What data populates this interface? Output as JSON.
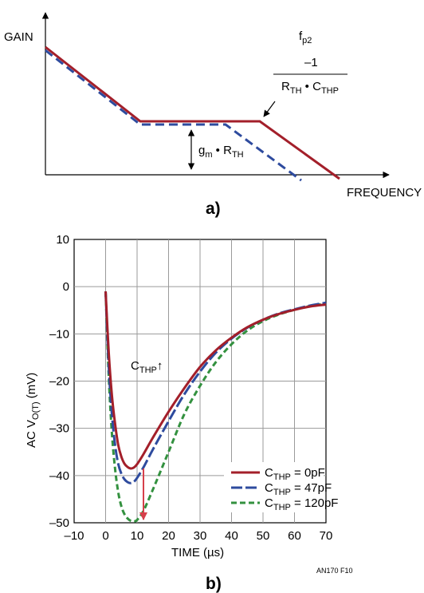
{
  "colors": {
    "red": "#a31f2a",
    "blue": "#2e4b9e",
    "green": "#33913f",
    "arrow_red": "#d6404b",
    "grid": "#9a9a9a"
  },
  "chart_data": [
    {
      "type": "line",
      "panel_label": "a)",
      "ylabel": "GAIN",
      "xlabel": "FREQUENCY",
      "axes": "no ticks, arrowheads on both axes",
      "series": [
        {
          "color": "red",
          "style": "solid",
          "shape": "slope down, flat plateau, slope down at higher frequency"
        },
        {
          "color": "blue",
          "style": "dashed",
          "shape": "slope down, flat plateau slightly lower, rolls off earlier"
        }
      ],
      "annotations": {
        "pole_label": "f",
        "pole_label_sub": "p2",
        "pole_numerator": "–1",
        "pole_den_r": "R",
        "pole_den_r_sub": "TH",
        "pole_den_dot": " • C",
        "pole_den_c_sub": "THP",
        "gain_text_g": "g",
        "gain_text_g_sub": "m",
        "gain_text_dot": " • R",
        "gain_text_r_sub": "TH"
      }
    },
    {
      "type": "line",
      "panel_label": "b)",
      "ylabel_main": "AC V",
      "ylabel_sub": "O(T)",
      "ylabel_unit": " (mV)",
      "xlabel": "TIME (µs)",
      "xlim": [
        -10,
        70
      ],
      "ylim": [
        -50,
        10
      ],
      "xticks": [
        "–10",
        "0",
        "10",
        "20",
        "30",
        "40",
        "50",
        "60",
        "70"
      ],
      "yticks": [
        "10",
        "0",
        "–10",
        "–20",
        "–30",
        "–40",
        "–50"
      ],
      "grid": true,
      "legend_position": "bottom-right",
      "annotation_main": "C",
      "annotation_sub": "THP",
      "annotation_arrow": "↑",
      "note": "AN170 F10",
      "series": [
        {
          "name_main": "C",
          "name_sub": "THP",
          "name_value": " = 0pF",
          "color": "red",
          "style": "solid",
          "x": [
            0,
            1,
            2,
            3,
            4,
            5,
            6,
            7,
            8,
            9,
            10,
            12,
            15,
            20,
            25,
            30,
            35,
            40,
            45,
            50,
            55,
            60,
            65,
            70
          ],
          "y": [
            -1,
            -14,
            -23,
            -29,
            -33.5,
            -36,
            -37.5,
            -38.2,
            -38.5,
            -38.3,
            -37.6,
            -35.5,
            -32,
            -26.5,
            -21.5,
            -17,
            -13.5,
            -10.8,
            -8.6,
            -7,
            -5.8,
            -4.9,
            -4.2,
            -3.8
          ]
        },
        {
          "name_main": "C",
          "name_sub": "THP",
          "name_value": " = 47pF",
          "color": "blue",
          "style": "long-dash",
          "x": [
            0,
            1,
            2,
            3,
            4,
            5,
            6,
            7,
            8,
            9,
            10,
            12,
            15,
            20,
            25,
            30,
            35,
            40,
            45,
            50,
            55,
            60,
            65,
            70
          ],
          "y": [
            -1,
            -17,
            -27,
            -33.5,
            -37.5,
            -39.6,
            -40.8,
            -41.4,
            -41.6,
            -41.3,
            -40.5,
            -38.3,
            -34.5,
            -28.5,
            -22.8,
            -18,
            -14,
            -11,
            -8.7,
            -7,
            -5.7,
            -4.8,
            -4,
            -3.4
          ]
        },
        {
          "name_main": "C",
          "name_sub": "THP",
          "name_value": " = 120pF",
          "color": "green",
          "style": "short-dash",
          "x": [
            0,
            1,
            2,
            3,
            4,
            5,
            6,
            7,
            8,
            9,
            10,
            12,
            15,
            20,
            25,
            30,
            35,
            40,
            45,
            50,
            55,
            60,
            65,
            70
          ],
          "y": [
            -1,
            -19,
            -31,
            -38.5,
            -43.5,
            -46.5,
            -48.2,
            -49.1,
            -49.6,
            -49.7,
            -49.4,
            -47.5,
            -43,
            -35,
            -27,
            -21,
            -16,
            -12.2,
            -9.3,
            -7.3,
            -5.9,
            -4.9,
            -4.1,
            -3.6
          ]
        }
      ]
    }
  ]
}
